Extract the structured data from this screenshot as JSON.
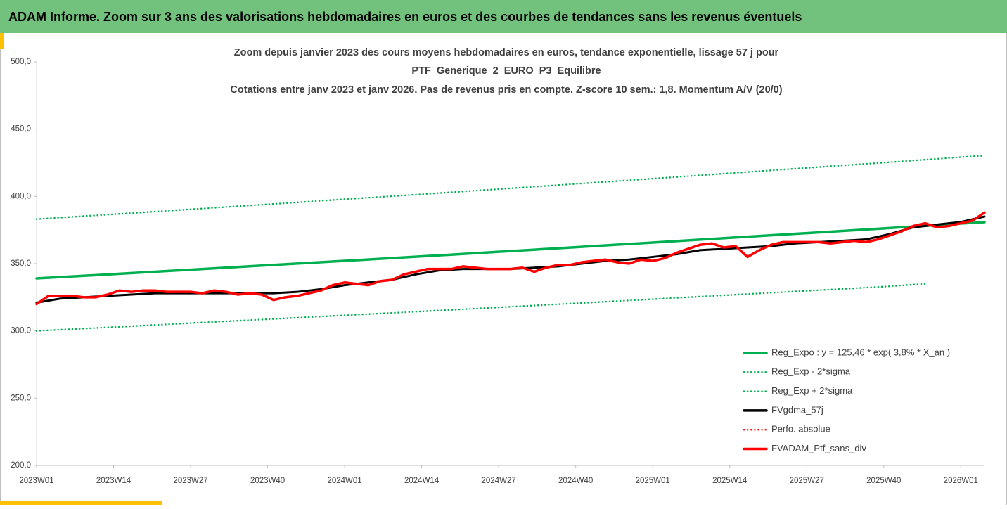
{
  "header": {
    "title": "ADAM Informe. Zoom sur 3 ans des valorisations hebdomadaires en euros et des courbes de tendances sans les revenus éventuels"
  },
  "chart_data": {
    "type": "line",
    "title": [
      "Zoom depuis janvier 2023 des cours moyens hebdomadaires  en euros, tendance exponentielle, lissage 57 j pour",
      "PTF_Generique_2_EURO_P3_Equilibre",
      "Cotations entre janv 2023 et janv 2026. Pas de revenus pris en compte. Z-score 10 sem.: 1,8. Momentum A/V (20/0)"
    ],
    "xlim": [
      0,
      160
    ],
    "xticks": [
      {
        "value": 0,
        "label": "2023W01"
      },
      {
        "value": 13,
        "label": "2023W14"
      },
      {
        "value": 26,
        "label": "2023W27"
      },
      {
        "value": 39,
        "label": "2023W40"
      },
      {
        "value": 52,
        "label": "2024W01"
      },
      {
        "value": 65,
        "label": "2024W14"
      },
      {
        "value": 78,
        "label": "2024W27"
      },
      {
        "value": 91,
        "label": "2024W40"
      },
      {
        "value": 104,
        "label": "2025W01"
      },
      {
        "value": 117,
        "label": "2025W14"
      },
      {
        "value": 130,
        "label": "2025W27"
      },
      {
        "value": 143,
        "label": "2025W40"
      },
      {
        "value": 156,
        "label": "2026W01"
      }
    ],
    "ylim": [
      200,
      500
    ],
    "yticks": [
      {
        "value": 200,
        "label": "200,0"
      },
      {
        "value": 250,
        "label": "250,0"
      },
      {
        "value": 300,
        "label": "300,0"
      },
      {
        "value": 350,
        "label": "350,0"
      },
      {
        "value": 400,
        "label": "400,0"
      },
      {
        "value": 450,
        "label": "450,0"
      },
      {
        "value": 500,
        "label": "500,0"
      }
    ],
    "legend": "lower right",
    "series": [
      {
        "name": "Reg_Expo : y = 125,46 * exp( 3,8% *  X_an )",
        "color": "#00b050",
        "style": "solid",
        "x": [
          0,
          13,
          26,
          39,
          52,
          65,
          78,
          91,
          104,
          117,
          130,
          143,
          156,
          160
        ],
        "values": [
          339.0,
          342.2,
          345.5,
          348.8,
          352.1,
          355.4,
          358.8,
          362.2,
          365.7,
          369.2,
          372.7,
          376.2,
          379.8,
          380.8
        ]
      },
      {
        "name": "Reg_Exp - 2*sigma",
        "color": "#00b050",
        "style": "dotted",
        "x": [
          0,
          13,
          26,
          39,
          52,
          65,
          78,
          91,
          104,
          117,
          130,
          143,
          150
        ],
        "values": [
          300.0,
          302.8,
          305.8,
          308.7,
          311.6,
          314.5,
          317.5,
          320.5,
          323.6,
          326.7,
          329.8,
          332.9,
          335.0
        ]
      },
      {
        "name": "Reg_Exp + 2*sigma",
        "color": "#00b050",
        "style": "dotted",
        "x": [
          0,
          13,
          26,
          39,
          52,
          65,
          78,
          91,
          104,
          117,
          130,
          143,
          156,
          160
        ],
        "values": [
          383.1,
          386.7,
          390.4,
          394.1,
          397.9,
          401.6,
          405.4,
          409.3,
          413.2,
          417.2,
          421.2,
          425.1,
          429.2,
          430.3
        ]
      },
      {
        "name": "FVgdma_57j",
        "color": "#000000",
        "style": "solid",
        "x": [
          0,
          4,
          8,
          12,
          16,
          20,
          24,
          28,
          32,
          36,
          40,
          44,
          48,
          52,
          56,
          60,
          64,
          68,
          72,
          76,
          80,
          84,
          88,
          92,
          96,
          100,
          104,
          108,
          112,
          116,
          120,
          124,
          128,
          132,
          136,
          140,
          144,
          148,
          152,
          156,
          160
        ],
        "values": [
          321,
          324,
          325,
          326,
          327,
          328,
          328,
          328,
          328,
          328,
          328,
          329,
          331,
          334,
          336,
          338,
          342,
          345,
          346,
          346,
          346,
          347,
          348,
          350,
          352,
          353,
          355,
          357,
          360,
          361,
          362,
          363,
          365,
          366,
          367,
          368,
          372,
          377,
          379,
          381,
          385
        ]
      },
      {
        "name": "Perfo. absolue",
        "color": "#ff0000",
        "style": "dotted",
        "x": [],
        "values": []
      },
      {
        "name": "FVADAM_Ptf_sans_div",
        "color": "#ff0000",
        "style": "solid",
        "x": [
          0,
          2,
          4,
          6,
          8,
          10,
          12,
          14,
          16,
          18,
          20,
          22,
          24,
          26,
          28,
          30,
          32,
          34,
          36,
          38,
          40,
          42,
          44,
          46,
          48,
          50,
          52,
          54,
          56,
          58,
          60,
          62,
          64,
          66,
          68,
          70,
          72,
          74,
          76,
          78,
          80,
          82,
          84,
          86,
          88,
          90,
          92,
          94,
          96,
          98,
          100,
          102,
          104,
          106,
          108,
          110,
          112,
          114,
          116,
          118,
          120,
          122,
          124,
          126,
          128,
          130,
          132,
          134,
          136,
          138,
          140,
          142,
          144,
          146,
          148,
          150,
          152,
          154,
          156,
          158,
          160
        ],
        "values": [
          320,
          326,
          326,
          326,
          325,
          325,
          327,
          330,
          329,
          330,
          330,
          329,
          329,
          329,
          328,
          330,
          329,
          327,
          328,
          327,
          323,
          325,
          326,
          328,
          330,
          334,
          336,
          335,
          334,
          337,
          338,
          342,
          344,
          346,
          346,
          346,
          348,
          347,
          346,
          346,
          346,
          347,
          344,
          347,
          349,
          349,
          351,
          352,
          353,
          351,
          350,
          353,
          352,
          354,
          358,
          361,
          364,
          365,
          362,
          363,
          355,
          360,
          364,
          366,
          366,
          366,
          366,
          365,
          366,
          367,
          366,
          368,
          371,
          374,
          378,
          380,
          377,
          378,
          380,
          382,
          388
        ]
      }
    ]
  }
}
